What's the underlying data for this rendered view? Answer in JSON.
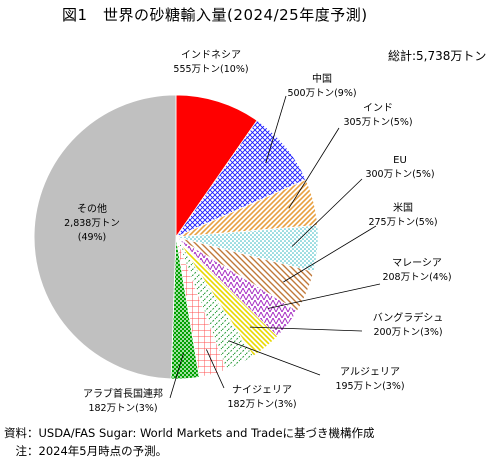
{
  "title": "図1　世界の砂糖輸入量(2024/25年度予測)",
  "total_label": "総計:5,738万トン",
  "footer": {
    "source": "資料：USDA/FAS Sugar: World Markets and Tradeに基づき機構作成",
    "note": "　注：2024年5月時点の予測。"
  },
  "chart_data": {
    "type": "pie",
    "title": "図1　世界の砂糖輸入量(2024/25年度予測)",
    "unit": "万トン",
    "total": 5738,
    "slices": [
      {
        "name": "インドネシア",
        "value": 555,
        "pct": 10,
        "value_label": "555万トン(10%)",
        "color": "#ff0000"
      },
      {
        "name": "中国",
        "value": 500,
        "pct": 9,
        "value_label": "500万トン(9%)",
        "color": "#0000ff"
      },
      {
        "name": "インド",
        "value": 305,
        "pct": 5,
        "value_label": "305万トン(5%)",
        "color": "#e8a040"
      },
      {
        "name": "EU",
        "value": 300,
        "pct": 5,
        "value_label": "300万トン(5%)",
        "color": "#40c8c8"
      },
      {
        "name": "米国",
        "value": 275,
        "pct": 5,
        "value_label": "275万トン(5%)",
        "color": "#c08040"
      },
      {
        "name": "マレーシア",
        "value": 208,
        "pct": 4,
        "value_label": "208万トン(4%)",
        "color": "#a020c0"
      },
      {
        "name": "バングラデシュ",
        "value": 200,
        "pct": 3,
        "value_label": "200万トン(3%)",
        "color": "#f0e000"
      },
      {
        "name": "アルジェリア",
        "value": 195,
        "pct": 3,
        "value_label": "195万トン(3%)",
        "color": "#30a040"
      },
      {
        "name": "ナイジェリア",
        "value": 182,
        "pct": 3,
        "value_label": "182万トン(3%)",
        "color": "#ff4040"
      },
      {
        "name": "アラブ首長国連邦",
        "value": 182,
        "pct": 3,
        "value_label": "182万トン(3%)",
        "color": "#00b000"
      },
      {
        "name": "その他",
        "value": 2838,
        "pct": 49,
        "value_label": "2,838万トン",
        "pct_label": "(49%)",
        "color": "#c0c0c0"
      }
    ]
  }
}
